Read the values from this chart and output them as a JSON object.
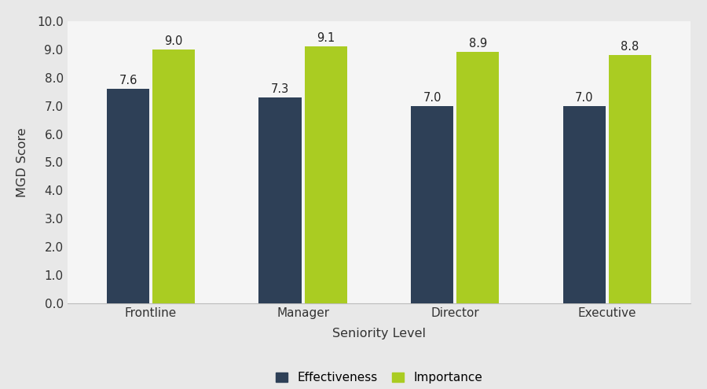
{
  "categories": [
    "Frontline",
    "Manager",
    "Director",
    "Executive"
  ],
  "effectiveness_values": [
    7.6,
    7.3,
    7.0,
    7.0
  ],
  "importance_values": [
    9.0,
    9.1,
    8.9,
    8.8
  ],
  "effectiveness_color": "#2E4057",
  "importance_color": "#AACC22",
  "xlabel": "Seniority Level",
  "ylabel": "MGD Score",
  "ylim": [
    0.0,
    10.0
  ],
  "yticks": [
    0.0,
    1.0,
    2.0,
    3.0,
    4.0,
    5.0,
    6.0,
    7.0,
    8.0,
    9.0,
    10.0
  ],
  "legend_effectiveness": "Effectiveness",
  "legend_importance": "Importance",
  "figure_background_color": "#E8E8E8",
  "plot_background_color": "#F5F5F5",
  "bar_width": 0.28,
  "label_fontsize": 10.5,
  "axis_label_fontsize": 11.5,
  "tick_fontsize": 11
}
